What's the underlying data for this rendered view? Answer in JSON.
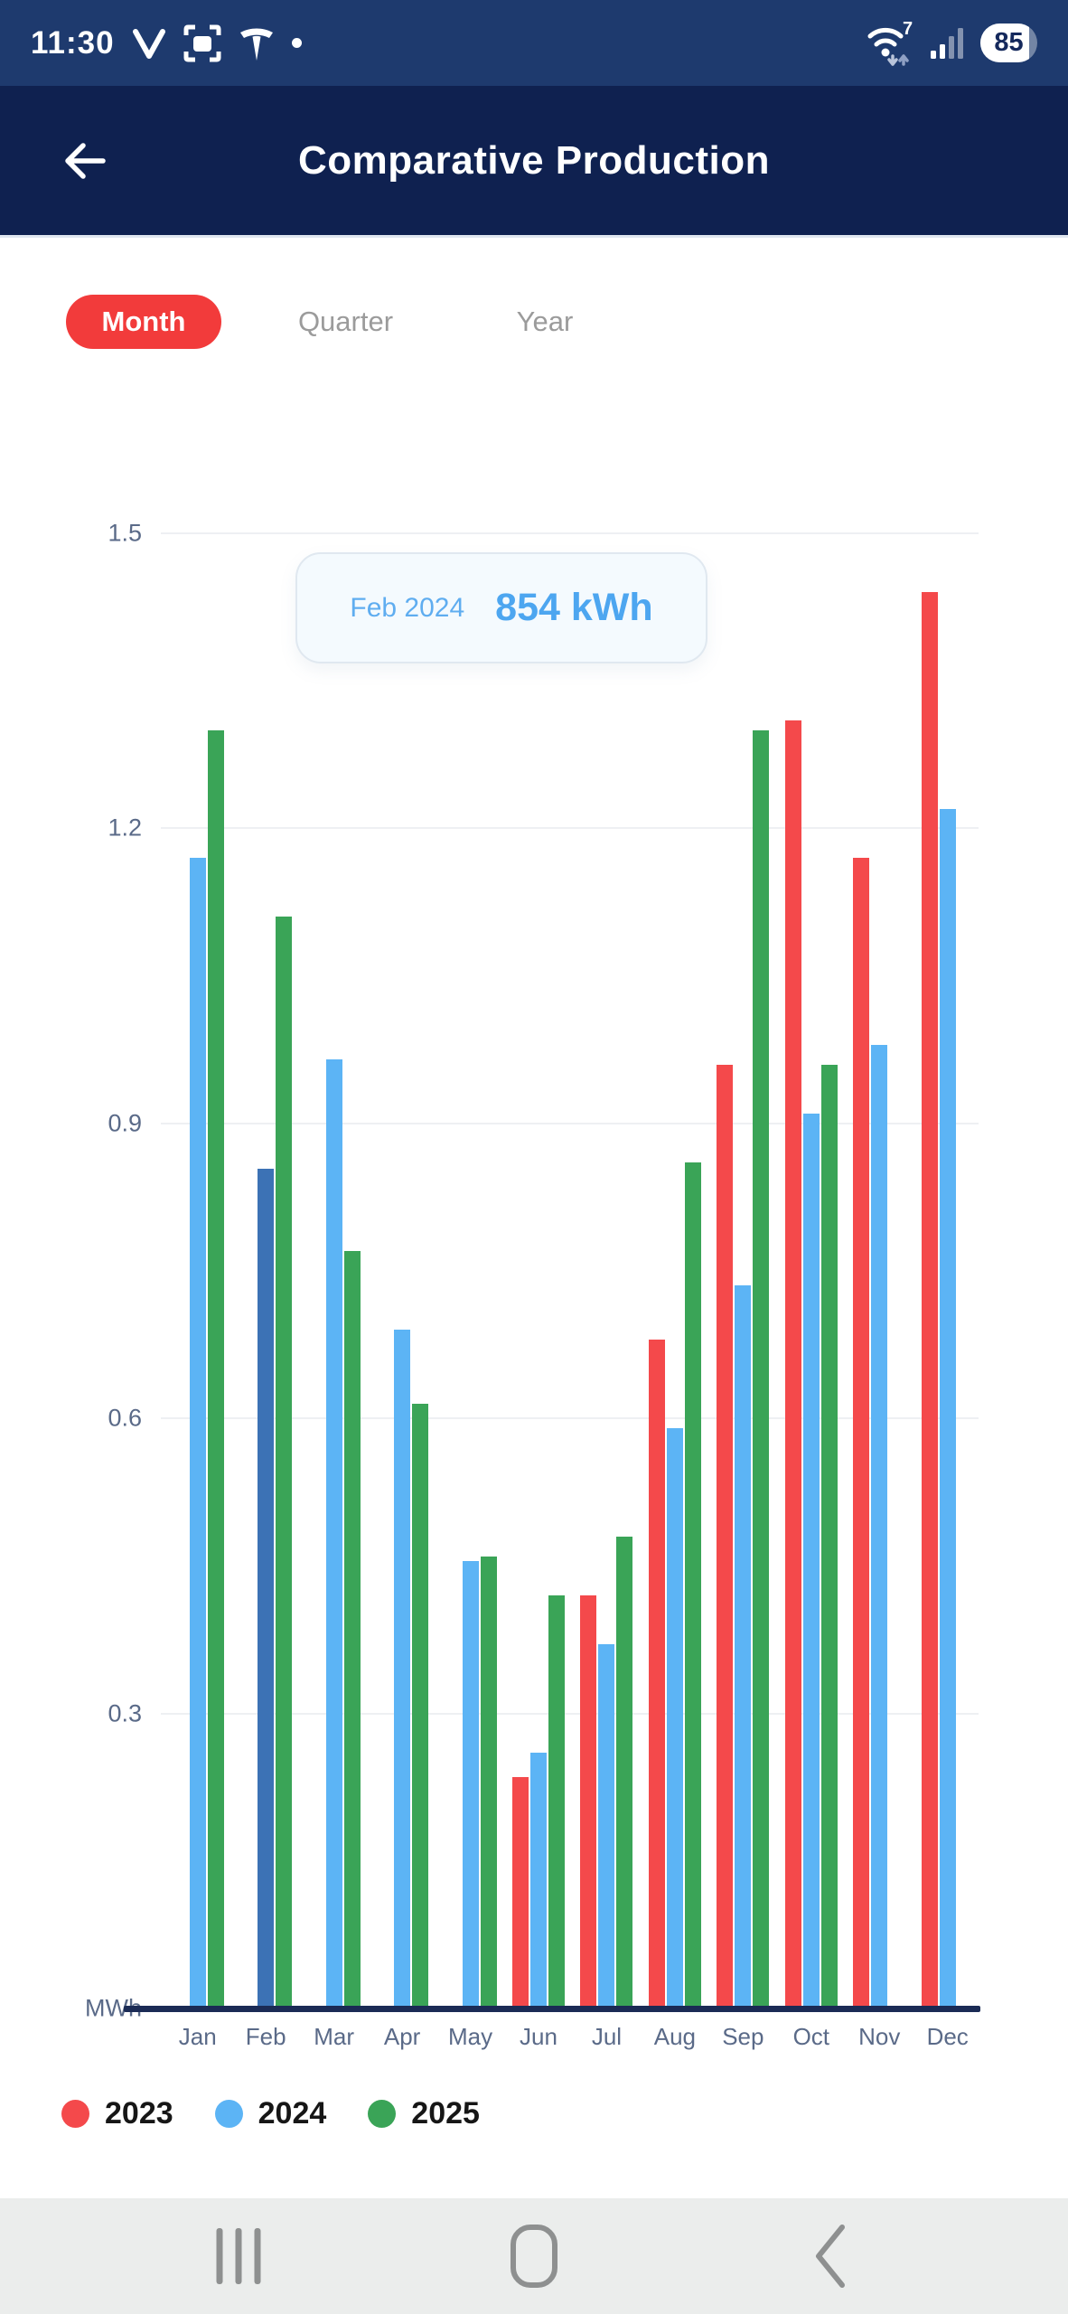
{
  "status_bar": {
    "time": "11:30",
    "battery_percent": "85",
    "wifi_generation": "7"
  },
  "header": {
    "title": "Comparative Production"
  },
  "tabs": {
    "items": [
      {
        "label": "Month",
        "active": true
      },
      {
        "label": "Quarter",
        "active": false
      },
      {
        "label": "Year",
        "active": false
      }
    ]
  },
  "tooltip": {
    "label": "Feb 2024",
    "value": "854 kWh"
  },
  "legend": [
    {
      "label": "2023",
      "color": "#f4494b"
    },
    {
      "label": "2024",
      "color": "#5cb4f5"
    },
    {
      "label": "2025",
      "color": "#3aa457"
    }
  ],
  "chart_data": {
    "type": "bar",
    "title": "Comparative Production",
    "unit_label": "MWh",
    "xlabel": "",
    "ylabel": "MWh",
    "ylim": [
      0,
      1.5
    ],
    "yticks": [
      0.3,
      0.6,
      0.9,
      1.2,
      1.5
    ],
    "grid": true,
    "legend_position": "bottom",
    "categories": [
      "Jan",
      "Feb",
      "Mar",
      "Apr",
      "May",
      "Jun",
      "Jul",
      "Aug",
      "Sep",
      "Oct",
      "Nov",
      "Dec"
    ],
    "series": [
      {
        "name": "2023",
        "color": "#f4494b",
        "values": [
          null,
          null,
          null,
          null,
          null,
          0.235,
          0.42,
          0.68,
          0.96,
          1.31,
          1.17,
          1.44
        ]
      },
      {
        "name": "2024",
        "color": "#5cb4f5",
        "values": [
          1.17,
          0.854,
          0.965,
          0.69,
          0.455,
          0.26,
          0.37,
          0.59,
          0.735,
          0.91,
          0.98,
          1.22
        ]
      },
      {
        "name": "2025",
        "color": "#3aa457",
        "values": [
          1.3,
          1.11,
          0.77,
          0.615,
          0.46,
          0.42,
          0.48,
          0.86,
          1.3,
          0.96,
          null,
          null
        ]
      }
    ],
    "highlight": {
      "series": "2024",
      "category": "Feb",
      "color": "#3c72b5"
    }
  },
  "colors": {
    "status_bar_bg": "#1e3a6e",
    "header_bg": "#0f2150",
    "tab_active_bg": "#f23b3b",
    "axis_line": "#1b2b55",
    "gridline": "#eef0f3",
    "axis_text": "#5a6a88",
    "nav_bg": "#ebedec",
    "nav_icon": "#8e9090"
  }
}
